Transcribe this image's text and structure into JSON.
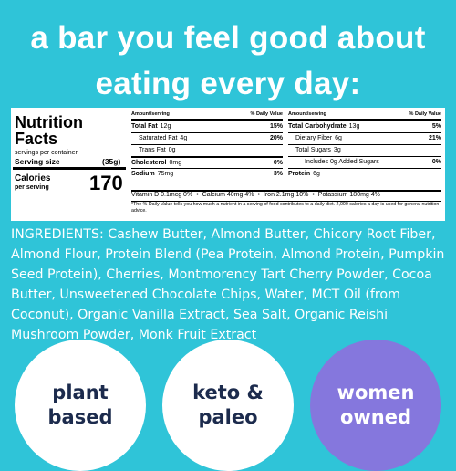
{
  "headline": [
    "a bar you feel good about",
    "eating every day:"
  ],
  "nutrition": {
    "title": [
      "Nutrition",
      "Facts"
    ],
    "servings_per_container": "servings per container",
    "serving_size_label": "Serving size",
    "serving_size": "(35g)",
    "calories_label": "Calories",
    "per_serving": "per serving",
    "calories": "170",
    "amount_header": "Amount/serving",
    "dv_header": "% Daily Value",
    "left_rows": [
      {
        "name": "Total Fat",
        "amount": "12g",
        "dv": "15%"
      },
      {
        "name": "Saturated Fat",
        "amount": "4g",
        "dv": "20%"
      },
      {
        "name": "Trans Fat",
        "amount": "0g"
      },
      {
        "name": "Cholesterol",
        "amount": "0mg",
        "dv": "0%"
      },
      {
        "name": "Sodium",
        "amount": "75mg",
        "dv": "3%"
      }
    ],
    "right_rows": [
      {
        "name": "Total Carbohydrate",
        "amount": "13g",
        "dv": "5%"
      },
      {
        "name": "Dietary Fiber",
        "amount": "6g",
        "dv": "21%"
      },
      {
        "name": "Total Sugars",
        "amount": "3g"
      },
      {
        "name": "Includes 0g Added Sugars",
        "dv": "0%"
      },
      {
        "name": "Protein",
        "amount": "6g"
      }
    ],
    "vitamins": [
      "Vitamin D 0.1mcg 0%",
      "Calcium 40mg 4%",
      "Iron 2.1mg 10%",
      "Potassium 180mg 4%"
    ],
    "footnote": "*The % Daily Value tells you how much a nutrient in a serving of food contributes to a daily diet. 2,000 calories a day is used for general nutrition advice."
  },
  "ingredients": {
    "label": "INGREDIENTS:",
    "text": "Cashew Butter, Almond Butter, Chicory Root Fiber, Almond Flour, Protein Blend (Pea Protein, Almond Protein, Pumpkin Seed Protein), Cherries, Montmorency Tart Cherry Powder, Cocoa Butter, Unsweetened Chocolate Chips, Water, MCT Oil (from Coconut), Organic Vanilla Extract, Sea Salt, Organic Reishi Mushroom Powder, Monk Fruit Extract"
  },
  "badges": [
    [
      "plant",
      "based"
    ],
    [
      "keto &",
      "paleo"
    ],
    [
      "women",
      "owned"
    ]
  ]
}
